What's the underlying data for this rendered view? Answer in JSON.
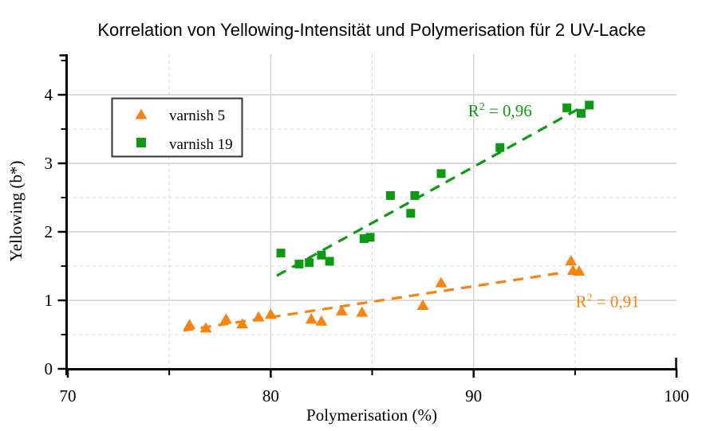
{
  "chart_data": {
    "type": "scatter",
    "title": "Korrelation von Yellowing-Intensität und Polymerisation für 2 UV-Lacke",
    "xlabel": "Polymerisation (%)",
    "ylabel": "Yellowing (b*)",
    "xlim": [
      70,
      100
    ],
    "ylim": [
      0,
      4.6
    ],
    "x_major_ticks": [
      70,
      80,
      90,
      100
    ],
    "x_minor_ticks": [
      75,
      85,
      95
    ],
    "y_major_ticks": [
      0,
      1,
      2,
      3,
      4
    ],
    "y_minor_ticks": [
      0.5,
      1.5,
      2.5,
      3.5,
      4.5
    ],
    "grid": {
      "major_style": "solid",
      "minor_style": "dashed",
      "major_color": "#d2d2d2",
      "minor_color": "#d9d9d9",
      "minor_grid_max_y": 3.5
    },
    "legend": {
      "position": "top-left",
      "border_color": "#333333",
      "fill": "#ffffff"
    },
    "decimal_separator": ",",
    "series": [
      {
        "name": "varnish 5",
        "marker": "triangle",
        "color": "#f9830f",
        "points": [
          [
            76.0,
            0.65
          ],
          [
            76.8,
            0.6
          ],
          [
            77.8,
            0.73
          ],
          [
            78.6,
            0.66
          ],
          [
            79.4,
            0.76
          ],
          [
            80.0,
            0.8
          ],
          [
            82.0,
            0.73
          ],
          [
            82.5,
            0.7
          ],
          [
            83.5,
            0.85
          ],
          [
            84.5,
            0.83
          ],
          [
            87.5,
            0.93
          ],
          [
            88.4,
            1.26
          ],
          [
            94.8,
            1.58
          ],
          [
            94.9,
            1.44
          ],
          [
            95.2,
            1.43
          ]
        ],
        "trendline": {
          "style": "dashed",
          "x_start": 75.7,
          "y_start": 0.56,
          "x_end": 94.3,
          "y_end": 1.4
        },
        "r_squared": "0,91"
      },
      {
        "name": "varnish 19",
        "marker": "square",
        "color": "#0d9a12",
        "points": [
          [
            80.5,
            1.69
          ],
          [
            81.4,
            1.53
          ],
          [
            81.9,
            1.55
          ],
          [
            82.5,
            1.66
          ],
          [
            82.9,
            1.57
          ],
          [
            84.6,
            1.9
          ],
          [
            84.9,
            1.92
          ],
          [
            85.9,
            2.53
          ],
          [
            86.9,
            2.27
          ],
          [
            87.1,
            2.53
          ],
          [
            88.4,
            2.85
          ],
          [
            91.3,
            3.23
          ],
          [
            94.6,
            3.81
          ],
          [
            95.3,
            3.73
          ],
          [
            95.7,
            3.85
          ]
        ],
        "trendline": {
          "style": "dashed",
          "x_start": 80.3,
          "y_start": 1.36,
          "x_end": 95.2,
          "y_end": 3.8
        },
        "r_squared": "0,96"
      }
    ],
    "annotations": [
      {
        "prefix": "R",
        "sup": "2",
        "rest": " = 0,96",
        "color": "#0d9a12",
        "x": 91.3,
        "y": 3.77
      },
      {
        "prefix": "R",
        "sup": "2",
        "rest": " = 0,91",
        "color": "#f9830f",
        "x": 96.6,
        "y": 0.98
      }
    ]
  }
}
